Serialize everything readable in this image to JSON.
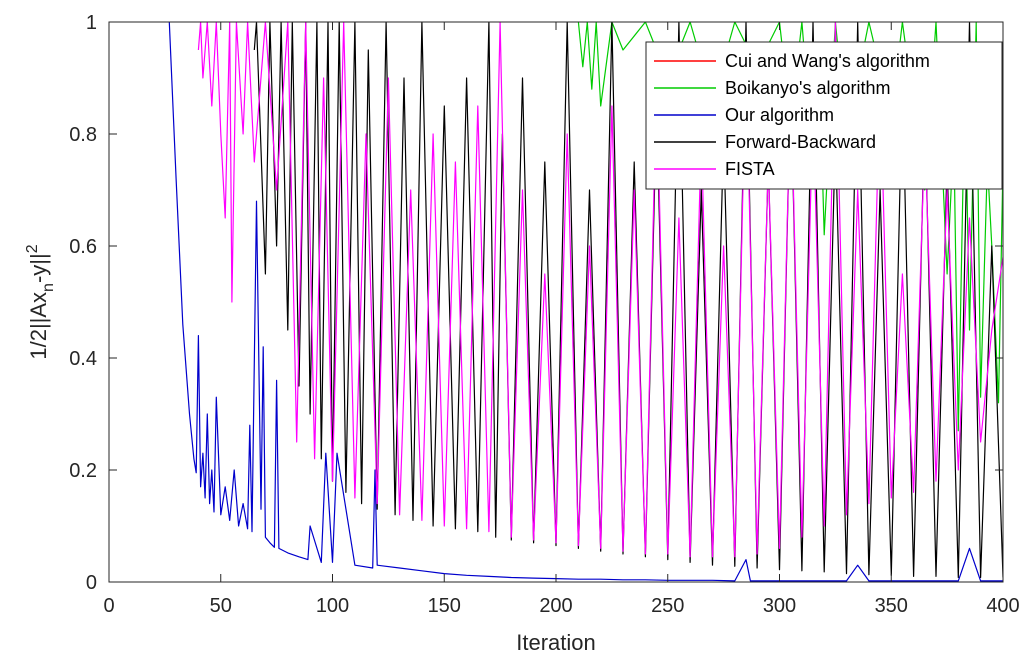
{
  "chart_data": {
    "type": "line",
    "xlabel": "Iteration",
    "ylabel": "1/2||Ax_n-y||^2",
    "ylabel_parts": {
      "pre": "1/2||Ax",
      "sub": "n",
      "mid": "-y||",
      "sup": "2"
    },
    "xlim": [
      0,
      400
    ],
    "ylim": [
      0,
      1
    ],
    "xticks": [
      "0",
      "50",
      "100",
      "150",
      "200",
      "250",
      "300",
      "350",
      "400"
    ],
    "yticks": [
      "0",
      "0.2",
      "0.4",
      "0.6",
      "0.8",
      "1"
    ],
    "grid": false,
    "legend_position": "top-right",
    "series": [
      {
        "name": "Cui and Wang's algorithm",
        "color": "#ff0000",
        "x": [],
        "y": []
      },
      {
        "name": "Boikanyo's algorithm",
        "color": "#00cc00",
        "x": [
          210,
          212,
          214,
          216,
          218,
          220,
          225,
          230,
          240,
          250,
          260,
          270,
          280,
          290,
          300,
          305,
          310,
          315,
          318,
          320,
          325,
          330,
          340,
          350,
          355,
          360,
          365,
          370,
          375,
          378,
          380,
          383,
          385,
          388,
          390,
          393,
          395,
          398,
          400
        ],
        "y": [
          1.0,
          0.92,
          1.0,
          0.88,
          1.0,
          0.85,
          1.0,
          0.95,
          1.0,
          0.9,
          1.0,
          0.86,
          1.0,
          0.92,
          1.0,
          0.82,
          1.0,
          0.75,
          0.9,
          0.62,
          1.0,
          0.8,
          1.0,
          0.83,
          1.0,
          0.85,
          0.7,
          1.0,
          0.55,
          0.8,
          0.27,
          0.9,
          0.45,
          1.0,
          0.33,
          0.75,
          0.6,
          0.32,
          0.75
        ]
      },
      {
        "name": "Our algorithm",
        "color": "#0000cc",
        "x": [
          27,
          30,
          33,
          36,
          38,
          39,
          40,
          41,
          42,
          43,
          44,
          45,
          46,
          47,
          48,
          50,
          52,
          54,
          56,
          58,
          60,
          62,
          63,
          64,
          66,
          68,
          69,
          70,
          72,
          74,
          75,
          76,
          80,
          85,
          89,
          90,
          95,
          97,
          100,
          102,
          110,
          118,
          119,
          120,
          130,
          140,
          150,
          160,
          170,
          180,
          190,
          200,
          210,
          220,
          230,
          240,
          250,
          260,
          270,
          280,
          285,
          287,
          290,
          300,
          310,
          320,
          330,
          335,
          340,
          350,
          360,
          370,
          380,
          385,
          390,
          400
        ],
        "y": [
          1.0,
          0.72,
          0.46,
          0.3,
          0.22,
          0.195,
          0.44,
          0.17,
          0.23,
          0.15,
          0.3,
          0.14,
          0.2,
          0.125,
          0.33,
          0.12,
          0.17,
          0.11,
          0.2,
          0.1,
          0.14,
          0.095,
          0.28,
          0.09,
          0.68,
          0.13,
          0.42,
          0.08,
          0.07,
          0.062,
          0.36,
          0.06,
          0.052,
          0.045,
          0.04,
          0.1,
          0.035,
          0.23,
          0.035,
          0.23,
          0.03,
          0.025,
          0.2,
          0.03,
          0.025,
          0.02,
          0.015,
          0.012,
          0.01,
          0.008,
          0.007,
          0.006,
          0.005,
          0.005,
          0.004,
          0.004,
          0.003,
          0.003,
          0.003,
          0.002,
          0.04,
          0.002,
          0.002,
          0.002,
          0.002,
          0.002,
          0.002,
          0.03,
          0.002,
          0.002,
          0.002,
          0.002,
          0.002,
          0.06,
          0.002,
          0.002
        ]
      },
      {
        "name": "Forward-Backward",
        "color": "#000000",
        "x": [
          65,
          66,
          70,
          72,
          75,
          77,
          80,
          82,
          85,
          88,
          90,
          93,
          95,
          98,
          100,
          103,
          106,
          110,
          113,
          116,
          120,
          124,
          128,
          132,
          136,
          140,
          145,
          150,
          155,
          160,
          165,
          170,
          173,
          176,
          180,
          185,
          190,
          195,
          200,
          205,
          210,
          215,
          220,
          225,
          230,
          235,
          240,
          245,
          250,
          255,
          260,
          265,
          270,
          275,
          280,
          285,
          290,
          295,
          300,
          305,
          310,
          315,
          320,
          325,
          330,
          335,
          340,
          345,
          350,
          355,
          360,
          365,
          370,
          375,
          380,
          385,
          390,
          395,
          400
        ],
        "y": [
          0.95,
          1.0,
          0.55,
          1.0,
          0.6,
          1.0,
          0.45,
          1.0,
          0.35,
          1.0,
          0.3,
          1.0,
          0.22,
          1.0,
          0.18,
          1.0,
          0.16,
          1.0,
          0.14,
          0.95,
          0.13,
          1.0,
          0.12,
          0.9,
          0.11,
          1.0,
          0.1,
          0.85,
          0.095,
          0.9,
          0.09,
          1.0,
          0.08,
          0.8,
          0.075,
          0.9,
          0.07,
          0.75,
          0.065,
          1.0,
          0.06,
          0.7,
          0.055,
          1.0,
          0.05,
          0.75,
          0.045,
          0.85,
          0.04,
          1.0,
          0.035,
          0.7,
          0.03,
          0.8,
          0.028,
          1.0,
          0.025,
          0.75,
          0.022,
          0.9,
          0.02,
          1.0,
          0.018,
          0.8,
          0.015,
          1.0,
          0.013,
          0.7,
          0.012,
          0.9,
          0.01,
          0.85,
          0.01,
          0.75,
          0.008,
          1.0,
          0.008,
          0.6,
          0.008
        ]
      },
      {
        "name": "FISTA",
        "color": "#ff00ff",
        "x": [
          40,
          41,
          42,
          44,
          46,
          48,
          50,
          52,
          54,
          55,
          57,
          60,
          62,
          65,
          70,
          75,
          80,
          84,
          88,
          92,
          96,
          100,
          105,
          110,
          115,
          120,
          125,
          130,
          135,
          140,
          145,
          150,
          155,
          160,
          165,
          170,
          175,
          180,
          185,
          190,
          195,
          200,
          205,
          210,
          215,
          220,
          225,
          230,
          235,
          240,
          245,
          250,
          255,
          260,
          265,
          270,
          275,
          280,
          285,
          290,
          295,
          300,
          305,
          310,
          315,
          320,
          325,
          330,
          335,
          340,
          345,
          350,
          355,
          360,
          365,
          370,
          375,
          380,
          385,
          390,
          395,
          400
        ],
        "y": [
          0.95,
          1.0,
          0.9,
          1.0,
          0.85,
          1.0,
          0.8,
          0.65,
          1.0,
          0.5,
          1.0,
          0.8,
          1.0,
          0.75,
          1.0,
          0.7,
          1.0,
          0.25,
          1.0,
          0.22,
          0.9,
          0.18,
          1.0,
          0.15,
          0.8,
          0.14,
          0.9,
          0.12,
          0.7,
          0.11,
          0.8,
          0.1,
          0.75,
          0.095,
          0.85,
          0.09,
          1.0,
          0.08,
          0.7,
          0.075,
          0.55,
          0.07,
          0.8,
          0.065,
          0.6,
          0.06,
          0.85,
          0.055,
          0.7,
          0.05,
          0.9,
          0.05,
          0.65,
          0.045,
          0.8,
          0.045,
          0.6,
          0.045,
          0.95,
          0.05,
          0.75,
          0.06,
          0.9,
          0.08,
          0.85,
          0.1,
          1.0,
          0.12,
          0.7,
          0.14,
          0.9,
          0.15,
          0.55,
          0.16,
          0.8,
          0.18,
          0.7,
          0.2,
          0.65,
          0.25,
          0.45,
          0.58
        ]
      }
    ]
  }
}
